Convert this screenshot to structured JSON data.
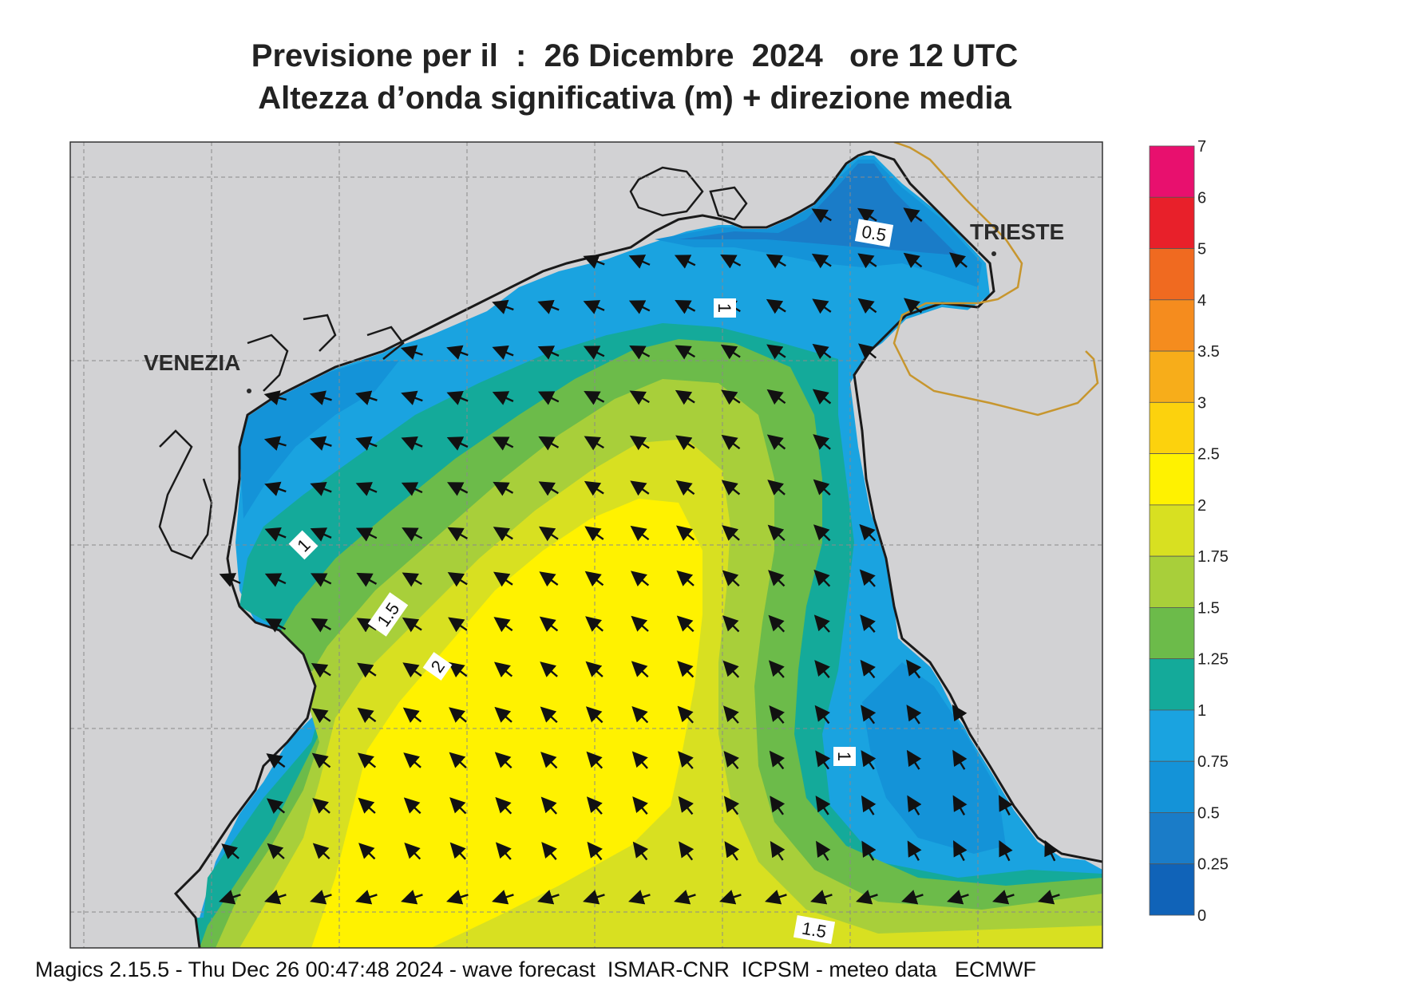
{
  "title": {
    "line1": "Previsione per il  :  26 Dicembre  2024   ore 12 UTC",
    "line2": "Altezza d’onda significativa (m) + direzione media"
  },
  "cities": [
    {
      "name": "VENEZIA"
    },
    {
      "name": "TRIESTE"
    }
  ],
  "contour_labels": [
    "0.5",
    "1",
    "1",
    "1",
    "1.5",
    "2",
    "1.5"
  ],
  "colorbar": {
    "levels": [
      "7",
      "6",
      "5",
      "4",
      "3.5",
      "3",
      "2.5",
      "2",
      "1.75",
      "1.5",
      "1.25",
      "1",
      "0.75",
      "0.5",
      "0.25",
      "0"
    ],
    "colors": [
      "#e8106e",
      "#e8202a",
      "#f06a20",
      "#f58c1e",
      "#f7ad1a",
      "#fcd20d",
      "#fff200",
      "#d8e021",
      "#a8cf3a",
      "#6cbb4a",
      "#14aa9a",
      "#1aa3e0",
      "#1493d8",
      "#1a7cc8",
      "#1063b8"
    ]
  },
  "colors": {
    "land": "#d2d2d4",
    "coast": "#1a1a1a",
    "border": "#c7962e"
  },
  "footer": "Magics 2.15.5 - Thu Dec 26 00:47:48 2024 - wave forecast  ISMAR-CNR  ICPSM - meteo data   ECMWF"
}
